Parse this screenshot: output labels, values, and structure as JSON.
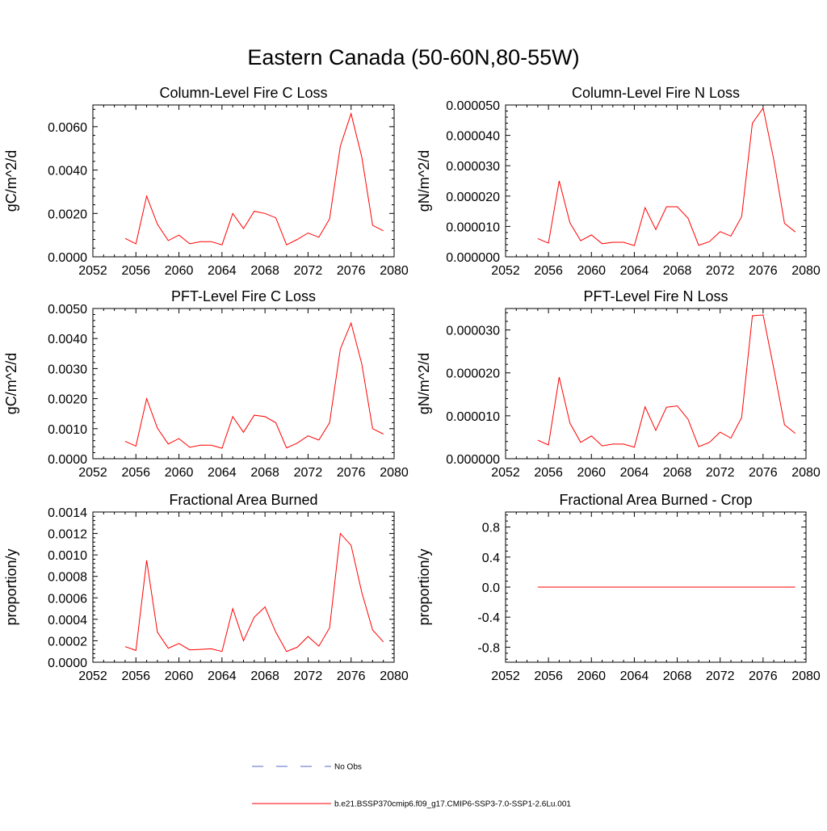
{
  "figure": {
    "title": "Eastern Canada (50-60N,80-55W)"
  },
  "legend": {
    "entries": [
      {
        "label": "No Obs",
        "color": "#5566cc",
        "style": "dashed"
      },
      {
        "label": "b.e21.BSSP370cmip6.f09_g17.CMIP6-SSP3-7.0-SSP1-2.6Lu.001",
        "color": "#ff0000",
        "style": "solid"
      }
    ]
  },
  "chart_data": [
    {
      "type": "line",
      "title": "Column-Level Fire C Loss",
      "ylabel": "gC/m^2/d",
      "xlim": [
        2052,
        2080
      ],
      "ylim": [
        0,
        0.007
      ],
      "xticks": [
        2052,
        2056,
        2060,
        2064,
        2068,
        2072,
        2076,
        2080
      ],
      "yticks": [
        0,
        0.002,
        0.004,
        0.006
      ],
      "ytick_labels": [
        "0.0000",
        "0.0020",
        "0.0040",
        "0.0060"
      ],
      "series": [
        {
          "color": "#ff0000",
          "x": [
            2055,
            2056,
            2057,
            2058,
            2059,
            2060,
            2061,
            2062,
            2063,
            2064,
            2065,
            2066,
            2067,
            2068,
            2069,
            2070,
            2071,
            2072,
            2073,
            2074,
            2075,
            2076,
            2077,
            2078,
            2079
          ],
          "y": [
            0.00085,
            0.0006,
            0.0028,
            0.0015,
            0.00075,
            0.001,
            0.0006,
            0.0007,
            0.0007,
            0.00055,
            0.002,
            0.0013,
            0.0021,
            0.002,
            0.0018,
            0.00055,
            0.0008,
            0.0011,
            0.0009,
            0.00175,
            0.0051,
            0.0066,
            0.0046,
            0.00145,
            0.0012
          ]
        }
      ]
    },
    {
      "type": "line",
      "title": "Column-Level Fire N Loss",
      "ylabel": "gN/m^2/d",
      "xlim": [
        2052,
        2080
      ],
      "ylim": [
        0,
        5e-05
      ],
      "xticks": [
        2052,
        2056,
        2060,
        2064,
        2068,
        2072,
        2076,
        2080
      ],
      "yticks": [
        0,
        1e-05,
        2e-05,
        3e-05,
        4e-05,
        5e-05
      ],
      "ytick_labels": [
        "0.000000",
        "0.000010",
        "0.000020",
        "0.000030",
        "0.000040",
        "0.000050"
      ],
      "series": [
        {
          "color": "#ff0000",
          "x": [
            2055,
            2056,
            2057,
            2058,
            2059,
            2060,
            2061,
            2062,
            2063,
            2064,
            2065,
            2066,
            2067,
            2068,
            2069,
            2070,
            2071,
            2072,
            2073,
            2074,
            2075,
            2076,
            2077,
            2078,
            2079
          ],
          "y": [
            6e-06,
            4.5e-06,
            2.5e-05,
            1.12e-05,
            5.3e-06,
            7.2e-06,
            4.3e-06,
            4.8e-06,
            4.8e-06,
            3.7e-06,
            1.62e-05,
            9e-06,
            1.65e-05,
            1.65e-05,
            1.27e-05,
            3.8e-06,
            5e-06,
            8.3e-06,
            6.8e-06,
            1.32e-05,
            4.4e-05,
            4.9e-05,
            3.2e-05,
            1.1e-05,
            8.2e-06
          ]
        }
      ]
    },
    {
      "type": "line",
      "title": "PFT-Level Fire C Loss",
      "ylabel": "gC/m^2/d",
      "xlim": [
        2052,
        2080
      ],
      "ylim": [
        0,
        0.005
      ],
      "xticks": [
        2052,
        2056,
        2060,
        2064,
        2068,
        2072,
        2076,
        2080
      ],
      "yticks": [
        0,
        0.001,
        0.002,
        0.003,
        0.004,
        0.005
      ],
      "ytick_labels": [
        "0.0000",
        "0.0010",
        "0.0020",
        "0.0030",
        "0.0040",
        "0.0050"
      ],
      "series": [
        {
          "color": "#ff0000",
          "x": [
            2055,
            2056,
            2057,
            2058,
            2059,
            2060,
            2061,
            2062,
            2063,
            2064,
            2065,
            2066,
            2067,
            2068,
            2069,
            2070,
            2071,
            2072,
            2073,
            2074,
            2075,
            2076,
            2077,
            2078,
            2079
          ],
          "y": [
            0.00058,
            0.00042,
            0.002,
            0.00102,
            0.00049,
            0.00067,
            0.00038,
            0.00045,
            0.00045,
            0.00035,
            0.0014,
            0.00088,
            0.00145,
            0.0014,
            0.0012,
            0.00036,
            0.00052,
            0.00076,
            0.00062,
            0.0012,
            0.00365,
            0.00452,
            0.00315,
            0.001,
            0.00082
          ]
        }
      ]
    },
    {
      "type": "line",
      "title": "PFT-Level Fire N Loss",
      "ylabel": "gN/m^2/d",
      "xlim": [
        2052,
        2080
      ],
      "ylim": [
        0,
        3.5e-05
      ],
      "xticks": [
        2052,
        2056,
        2060,
        2064,
        2068,
        2072,
        2076,
        2080
      ],
      "yticks": [
        0,
        1e-05,
        2e-05,
        3e-05
      ],
      "ytick_labels": [
        "0.000000",
        "0.000010",
        "0.000020",
        "0.000030"
      ],
      "series": [
        {
          "color": "#ff0000",
          "x": [
            2055,
            2056,
            2057,
            2058,
            2059,
            2060,
            2061,
            2062,
            2063,
            2064,
            2065,
            2066,
            2067,
            2068,
            2069,
            2070,
            2071,
            2072,
            2073,
            2074,
            2075,
            2076,
            2077,
            2078,
            2079
          ],
          "y": [
            4.3e-06,
            3.2e-06,
            1.9e-05,
            8.3e-06,
            3.8e-06,
            5.3e-06,
            3e-06,
            3.4e-06,
            3.4e-06,
            2.7e-06,
            1.21e-05,
            6.6e-06,
            1.2e-05,
            1.23e-05,
            9.2e-06,
            2.8e-06,
            3.8e-06,
            6.2e-06,
            4.8e-06,
            9.6e-06,
            3.33e-05,
            3.35e-05,
            2.1e-05,
            7.9e-06,
            5.9e-06
          ]
        }
      ]
    },
    {
      "type": "line",
      "title": "Fractional Area Burned",
      "ylabel": "proportion/y",
      "xlim": [
        2052,
        2080
      ],
      "ylim": [
        0,
        0.0014
      ],
      "xticks": [
        2052,
        2056,
        2060,
        2064,
        2068,
        2072,
        2076,
        2080
      ],
      "yticks": [
        0,
        0.0002,
        0.0004,
        0.0006,
        0.0008,
        0.001,
        0.0012,
        0.0014
      ],
      "ytick_labels": [
        "0.0000",
        "0.0002",
        "0.0004",
        "0.0006",
        "0.0008",
        "0.0010",
        "0.0012",
        "0.0014"
      ],
      "series": [
        {
          "color": "#ff0000",
          "x": [
            2055,
            2056,
            2057,
            2058,
            2059,
            2060,
            2061,
            2062,
            2063,
            2064,
            2065,
            2066,
            2067,
            2068,
            2069,
            2070,
            2071,
            2072,
            2073,
            2074,
            2075,
            2076,
            2077,
            2078,
            2079
          ],
          "y": [
            0.000145,
            0.00011,
            0.00095,
            0.00028,
            0.00013,
            0.000175,
            0.000115,
            0.00012,
            0.000125,
            0.0001,
            0.0005,
            0.0002,
            0.00042,
            0.000515,
            0.00028,
            0.0001,
            0.00014,
            0.00024,
            0.00015,
            0.00032,
            0.0012,
            0.00109,
            0.00065,
            0.0003,
            0.00019
          ]
        }
      ]
    },
    {
      "type": "line",
      "title": "Fractional Area Burned - Crop",
      "ylabel": "proportion/y",
      "xlim": [
        2052,
        2080
      ],
      "ylim": [
        -1,
        1
      ],
      "xticks": [
        2052,
        2056,
        2060,
        2064,
        2068,
        2072,
        2076,
        2080
      ],
      "yticks": [
        -0.8,
        -0.4,
        0,
        0.4,
        0.8
      ],
      "ytick_labels": [
        "-0.8",
        "-0.4",
        "0.0",
        "0.4",
        "0.8"
      ],
      "series": [
        {
          "color": "#ff0000",
          "x": [
            2055,
            2056,
            2057,
            2058,
            2059,
            2060,
            2061,
            2062,
            2063,
            2064,
            2065,
            2066,
            2067,
            2068,
            2069,
            2070,
            2071,
            2072,
            2073,
            2074,
            2075,
            2076,
            2077,
            2078,
            2079
          ],
          "y": [
            0,
            0,
            0,
            0,
            0,
            0,
            0,
            0,
            0,
            0,
            0,
            0,
            0,
            0,
            0,
            0,
            0,
            0,
            0,
            0,
            0,
            0,
            0,
            0,
            0
          ]
        }
      ]
    }
  ]
}
